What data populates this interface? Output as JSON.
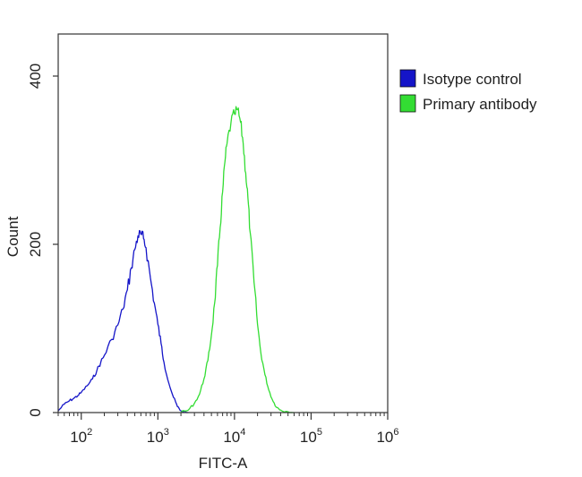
{
  "chart_data": {
    "type": "histogram",
    "xlabel": "FITC-A",
    "ylabel": "Count",
    "x_scale": "log",
    "xlim": [
      50,
      1000000
    ],
    "ylim": [
      0,
      450
    ],
    "x_ticks": [
      {
        "value": 100,
        "base": "10",
        "exp": "2"
      },
      {
        "value": 1000,
        "base": "10",
        "exp": "3"
      },
      {
        "value": 10000,
        "base": "10",
        "exp": "4"
      },
      {
        "value": 100000,
        "base": "10",
        "exp": "5"
      },
      {
        "value": 1000000,
        "base": "10",
        "exp": "6"
      }
    ],
    "y_ticks": [
      {
        "value": 0,
        "label": "0"
      },
      {
        "value": 200,
        "label": "200"
      },
      {
        "value": 400,
        "label": "400"
      }
    ],
    "legend_position": "top-right",
    "series": [
      {
        "name": "Isotype control",
        "color": "#1515c8",
        "points": [
          [
            50,
            2
          ],
          [
            60,
            10
          ],
          [
            70,
            14
          ],
          [
            80,
            17
          ],
          [
            90,
            20
          ],
          [
            100,
            24
          ],
          [
            120,
            32
          ],
          [
            140,
            40
          ],
          [
            160,
            50
          ],
          [
            180,
            60
          ],
          [
            200,
            68
          ],
          [
            250,
            87
          ],
          [
            300,
            104
          ],
          [
            350,
            123
          ],
          [
            400,
            146
          ],
          [
            450,
            172
          ],
          [
            500,
            194
          ],
          [
            550,
            210
          ],
          [
            600,
            212
          ],
          [
            650,
            207
          ],
          [
            700,
            196
          ],
          [
            800,
            160
          ],
          [
            900,
            130
          ],
          [
            1000,
            105
          ],
          [
            1100,
            82
          ],
          [
            1200,
            60
          ],
          [
            1400,
            34
          ],
          [
            1600,
            18
          ],
          [
            1800,
            7
          ],
          [
            2000,
            2
          ],
          [
            2500,
            0
          ]
        ]
      },
      {
        "name": "Primary antibody",
        "color": "#33dd33",
        "points": [
          [
            2000,
            0
          ],
          [
            2500,
            3
          ],
          [
            3000,
            11
          ],
          [
            3500,
            22
          ],
          [
            4000,
            40
          ],
          [
            4500,
            62
          ],
          [
            5000,
            92
          ],
          [
            5500,
            130
          ],
          [
            6000,
            175
          ],
          [
            6500,
            220
          ],
          [
            7000,
            262
          ],
          [
            7500,
            298
          ],
          [
            8000,
            320
          ],
          [
            9000,
            345
          ],
          [
            10000,
            355
          ],
          [
            11000,
            360
          ],
          [
            12000,
            345
          ],
          [
            13000,
            320
          ],
          [
            14000,
            285
          ],
          [
            15000,
            255
          ],
          [
            16000,
            215
          ],
          [
            18000,
            155
          ],
          [
            20000,
            105
          ],
          [
            22000,
            72
          ],
          [
            25000,
            45
          ],
          [
            28000,
            27
          ],
          [
            32000,
            13
          ],
          [
            36000,
            6
          ],
          [
            40000,
            3
          ],
          [
            50000,
            1
          ],
          [
            60000,
            0
          ]
        ]
      }
    ]
  }
}
